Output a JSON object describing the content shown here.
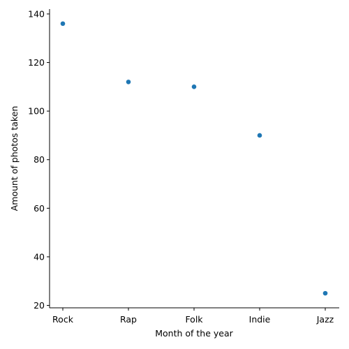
{
  "chart_data": {
    "type": "scatter",
    "title": "",
    "xlabel": "Month of the year",
    "ylabel": "Amount of photos taken",
    "categories": [
      "Rock",
      "Rap",
      "Folk",
      "Indie",
      "Jazz"
    ],
    "values": [
      136,
      112,
      110,
      90,
      25
    ],
    "y_ticks": [
      20,
      40,
      60,
      80,
      100,
      120,
      140
    ],
    "ylim": [
      19,
      142
    ],
    "grid": false,
    "legend": "none",
    "color": "#1f77b4"
  }
}
